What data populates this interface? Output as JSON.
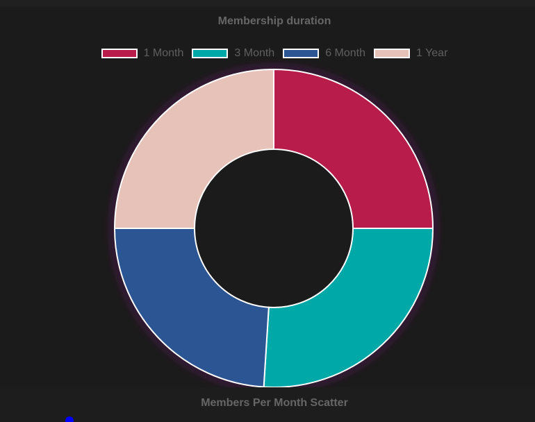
{
  "chart_data": {
    "type": "pie",
    "variant": "doughnut",
    "title": "Membership duration",
    "categories": [
      "1 Month",
      "3 Month",
      "6 Month",
      "1 Year"
    ],
    "values": [
      25,
      26,
      24,
      25
    ],
    "colors": [
      "#b71c4b",
      "#00a8a8",
      "#2c5693",
      "#e6c2b9"
    ],
    "border_color": "#ffffff",
    "legend_position": "top"
  },
  "bottom_chart": {
    "title": "Members Per Month Scatter",
    "point_color": "#0000ff"
  }
}
